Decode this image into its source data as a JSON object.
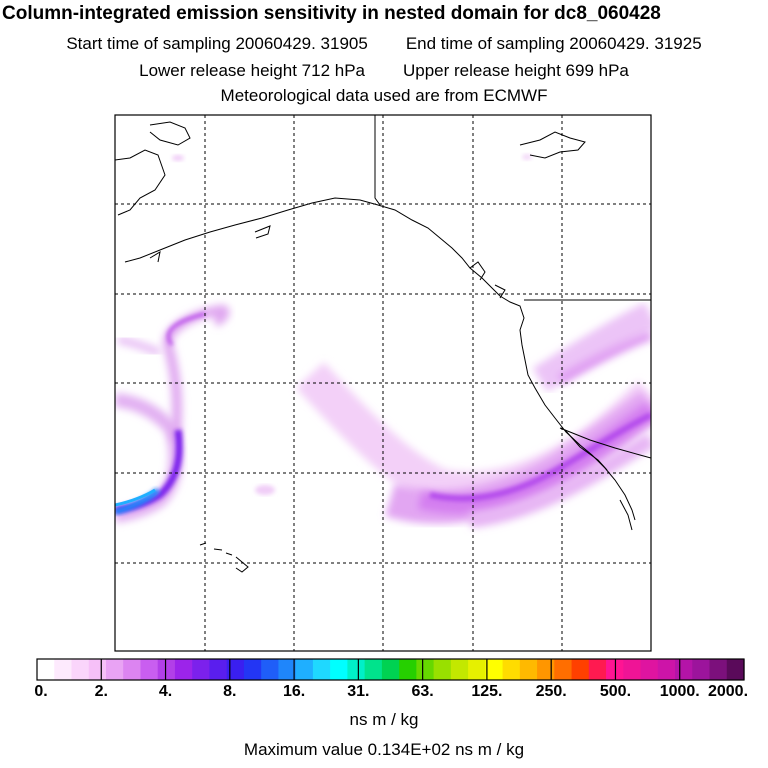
{
  "title": "Column-integrated emission sensitivity in nested domain for dc8_060428",
  "start_time": "Start time of sampling 20060429. 31905",
  "end_time": "End time of sampling 20060429. 31925",
  "lower_release": "Lower release height  712 hPa",
  "upper_release": "Upper release height  699 hPa",
  "met_data": "Meteorological data used are from ECMWF",
  "colorbar": {
    "ticks": [
      "0.",
      "2.",
      "4.",
      "8.",
      "16.",
      "31.",
      "63.",
      "125.",
      "250.",
      "500.",
      "1000.",
      "2000."
    ],
    "unit": "ns m / kg",
    "colors": [
      "#ffffff",
      "#fdeafd",
      "#fad5fb",
      "#f6c0f8",
      "#e9a3f4",
      "#dc84f1",
      "#c95ef0",
      "#b23fe8",
      "#9c24ea",
      "#7c21ec",
      "#5a1eee",
      "#3a1ff0",
      "#2336f4",
      "#1f5ef8",
      "#1f86fb",
      "#1fafff",
      "#1fd8ff",
      "#00ffff",
      "#00f0c8",
      "#00e38c",
      "#00d252",
      "#26d000",
      "#66d800",
      "#99e000",
      "#c3e800",
      "#e6f000",
      "#ffff00",
      "#ffdc00",
      "#ffb900",
      "#ff9600",
      "#ff6e00",
      "#ff4000",
      "#ff1a50",
      "#ff1493",
      "#ef1496",
      "#df14a0",
      "#cd14a8",
      "#b414a8",
      "#9c149c",
      "#7c107c",
      "#5a0a5a"
    ]
  },
  "max_value": "Maximum value  0.134E+02 ns m / kg"
}
